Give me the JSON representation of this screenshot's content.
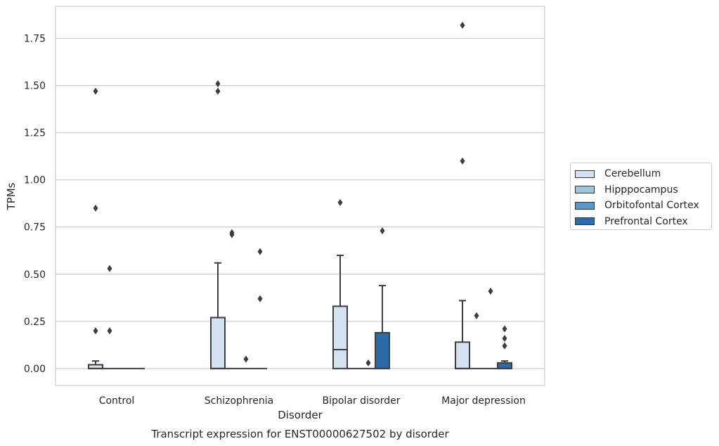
{
  "chart_data": {
    "type": "box",
    "title": "Transcript expression for ENST00000627502 by disorder",
    "xlabel": "Disorder",
    "ylabel": "TPMs",
    "categories": [
      "Control",
      "Schizophrenia",
      "Bipolar disorder",
      "Major depression"
    ],
    "ylim": [
      -0.09,
      1.92
    ],
    "yticks": [
      0.0,
      0.25,
      0.5,
      0.75,
      1.0,
      1.25,
      1.5,
      1.75
    ],
    "ytick_labels": [
      "0.00",
      "0.25",
      "0.50",
      "0.75",
      "1.00",
      "1.25",
      "1.50",
      "1.75"
    ],
    "grid": true,
    "legend_position": "right",
    "series": [
      {
        "name": "Cerebellum",
        "color": "#d4e1f0",
        "boxes": [
          {
            "q1": 0.0,
            "median": 0.0,
            "q3": 0.02,
            "whisker_low": 0.0,
            "whisker_high": 0.04,
            "outliers": [
              0.2,
              0.85,
              1.47
            ]
          },
          {
            "q1": 0.0,
            "median": 0.0,
            "q3": 0.27,
            "whisker_low": 0.0,
            "whisker_high": 0.56,
            "outliers": [
              1.47,
              1.51
            ]
          },
          {
            "q1": 0.0,
            "median": 0.1,
            "q3": 0.33,
            "whisker_low": 0.0,
            "whisker_high": 0.6,
            "outliers": [
              0.88
            ]
          },
          {
            "q1": 0.0,
            "median": 0.0,
            "q3": 0.14,
            "whisker_low": 0.0,
            "whisker_high": 0.36,
            "outliers": [
              1.1,
              1.82
            ]
          }
        ]
      },
      {
        "name": "Hipppocampus",
        "color": "#9fc4de",
        "boxes": [
          {
            "q1": 0.0,
            "median": 0.0,
            "q3": 0.0,
            "whisker_low": 0.0,
            "whisker_high": 0.0,
            "outliers": [
              0.2,
              0.53
            ]
          },
          {
            "q1": 0.0,
            "median": 0.0,
            "q3": 0.0,
            "whisker_low": 0.0,
            "whisker_high": 0.0,
            "outliers": [
              0.71,
              0.72
            ]
          },
          {
            "q1": 0.0,
            "median": 0.0,
            "q3": 0.0,
            "whisker_low": 0.0,
            "whisker_high": 0.0,
            "outliers": []
          },
          {
            "q1": 0.0,
            "median": 0.0,
            "q3": 0.0,
            "whisker_low": 0.0,
            "whisker_high": 0.0,
            "outliers": [
              0.28
            ]
          }
        ]
      },
      {
        "name": "Orbitofontal Cortex",
        "color": "#5a96c6",
        "boxes": [
          {
            "q1": 0.0,
            "median": 0.0,
            "q3": 0.0,
            "whisker_low": 0.0,
            "whisker_high": 0.0,
            "outliers": []
          },
          {
            "q1": 0.0,
            "median": 0.0,
            "q3": 0.0,
            "whisker_low": 0.0,
            "whisker_high": 0.0,
            "outliers": [
              0.05
            ]
          },
          {
            "q1": 0.0,
            "median": 0.0,
            "q3": 0.0,
            "whisker_low": 0.0,
            "whisker_high": 0.0,
            "outliers": [
              0.03
            ]
          },
          {
            "q1": 0.0,
            "median": 0.0,
            "q3": 0.0,
            "whisker_low": 0.0,
            "whisker_high": 0.0,
            "outliers": [
              0.41
            ]
          }
        ]
      },
      {
        "name": "Prefrontal Cortex",
        "color": "#2e6ba6",
        "boxes": [
          {
            "q1": 0.0,
            "median": 0.0,
            "q3": 0.0,
            "whisker_low": 0.0,
            "whisker_high": 0.0,
            "outliers": []
          },
          {
            "q1": 0.0,
            "median": 0.0,
            "q3": 0.0,
            "whisker_low": 0.0,
            "whisker_high": 0.0,
            "outliers": [
              0.37,
              0.62
            ]
          },
          {
            "q1": 0.0,
            "median": 0.0,
            "q3": 0.19,
            "whisker_low": 0.0,
            "whisker_high": 0.44,
            "outliers": [
              0.73
            ]
          },
          {
            "q1": 0.0,
            "median": 0.0,
            "q3": 0.03,
            "whisker_low": 0.0,
            "whisker_high": 0.04,
            "outliers": [
              0.12,
              0.16,
              0.21
            ]
          }
        ]
      }
    ]
  }
}
